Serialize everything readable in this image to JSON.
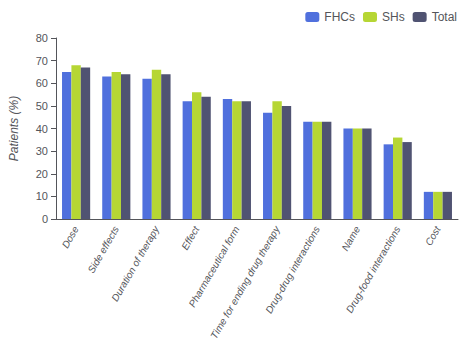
{
  "chart_data": {
    "type": "bar",
    "categories": [
      "Dose",
      "Side effects",
      "Duration of therapy",
      "Effect",
      "Pharmaceutical form",
      "Time for ending drug therapy",
      "Drug-drug interactions",
      "Name",
      "Drug-food interactions",
      "Cost"
    ],
    "series": [
      {
        "name": "FHCs",
        "values": [
          65,
          63,
          62,
          52,
          53,
          47,
          43,
          40,
          33,
          12
        ]
      },
      {
        "name": "SHs",
        "values": [
          68,
          65,
          66,
          56,
          52,
          52,
          43,
          40,
          36,
          12
        ]
      },
      {
        "name": "Total",
        "values": [
          67,
          64,
          64,
          54,
          52,
          50,
          43,
          40,
          34,
          12
        ]
      }
    ],
    "ylabel": "Patients (%)",
    "ylim": [
      0,
      80
    ],
    "yticks": [
      0,
      10,
      20,
      30,
      40,
      50,
      60,
      70,
      80
    ],
    "grid": false,
    "legend": "upper right"
  }
}
